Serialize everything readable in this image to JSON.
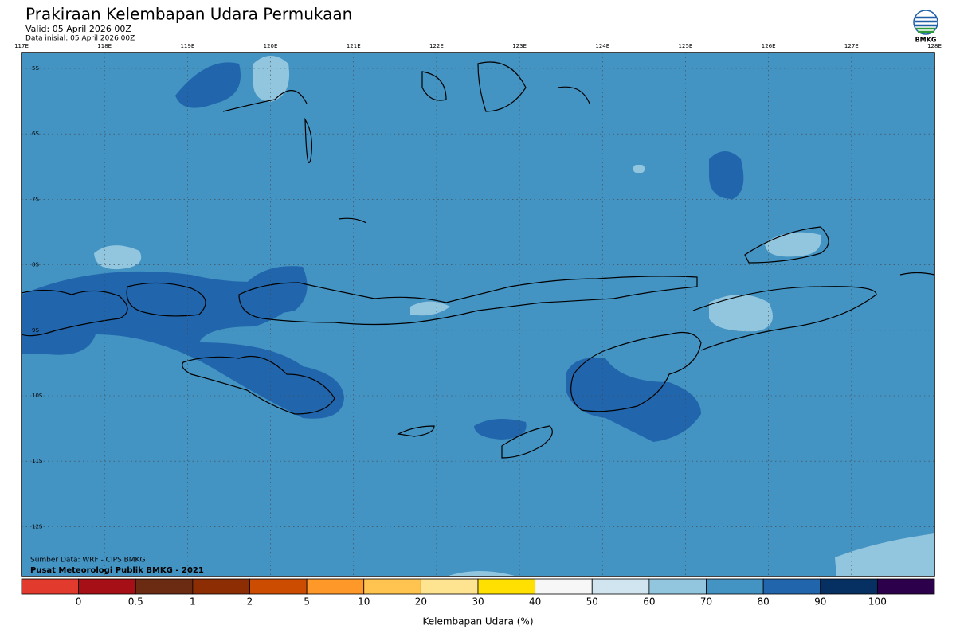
{
  "header": {
    "title": "Prakiraan Kelembapan Udara Permukaan",
    "valid": "Valid: 05 April 2026 00Z",
    "initial": "Data inisial: 05 April 2026 00Z"
  },
  "logo": "BMKG",
  "map": {
    "lon_labels": [
      "117E",
      "118E",
      "119E",
      "120E",
      "121E",
      "122E",
      "123E",
      "124E",
      "125E",
      "126E",
      "127E",
      "128E"
    ],
    "lat_labels": [
      "5S",
      "6S",
      "7S",
      "8S",
      "9S",
      "10S",
      "11S",
      "12S"
    ],
    "credits": [
      "Sumber Data: WRF - CIPS BMKG",
      "Pusat Meteorologi Publik BMKG - 2021"
    ]
  },
  "legend": {
    "title": "Kelembapan Udara (%)",
    "ticks": [
      0,
      0.5,
      1,
      2,
      5,
      10,
      20,
      30,
      40,
      50,
      60,
      70,
      80,
      90,
      100
    ],
    "colors": [
      "#e23b2e",
      "#a50f15",
      "#6b2a12",
      "#8c2d04",
      "#cc4c02",
      "#fe9929",
      "#fec44f",
      "#fee391",
      "#ffe000",
      "#f7f7f7",
      "#d1e5f0",
      "#92c5de",
      "#4393c3",
      "#2166ac",
      "#053061",
      "#2d004b"
    ]
  }
}
